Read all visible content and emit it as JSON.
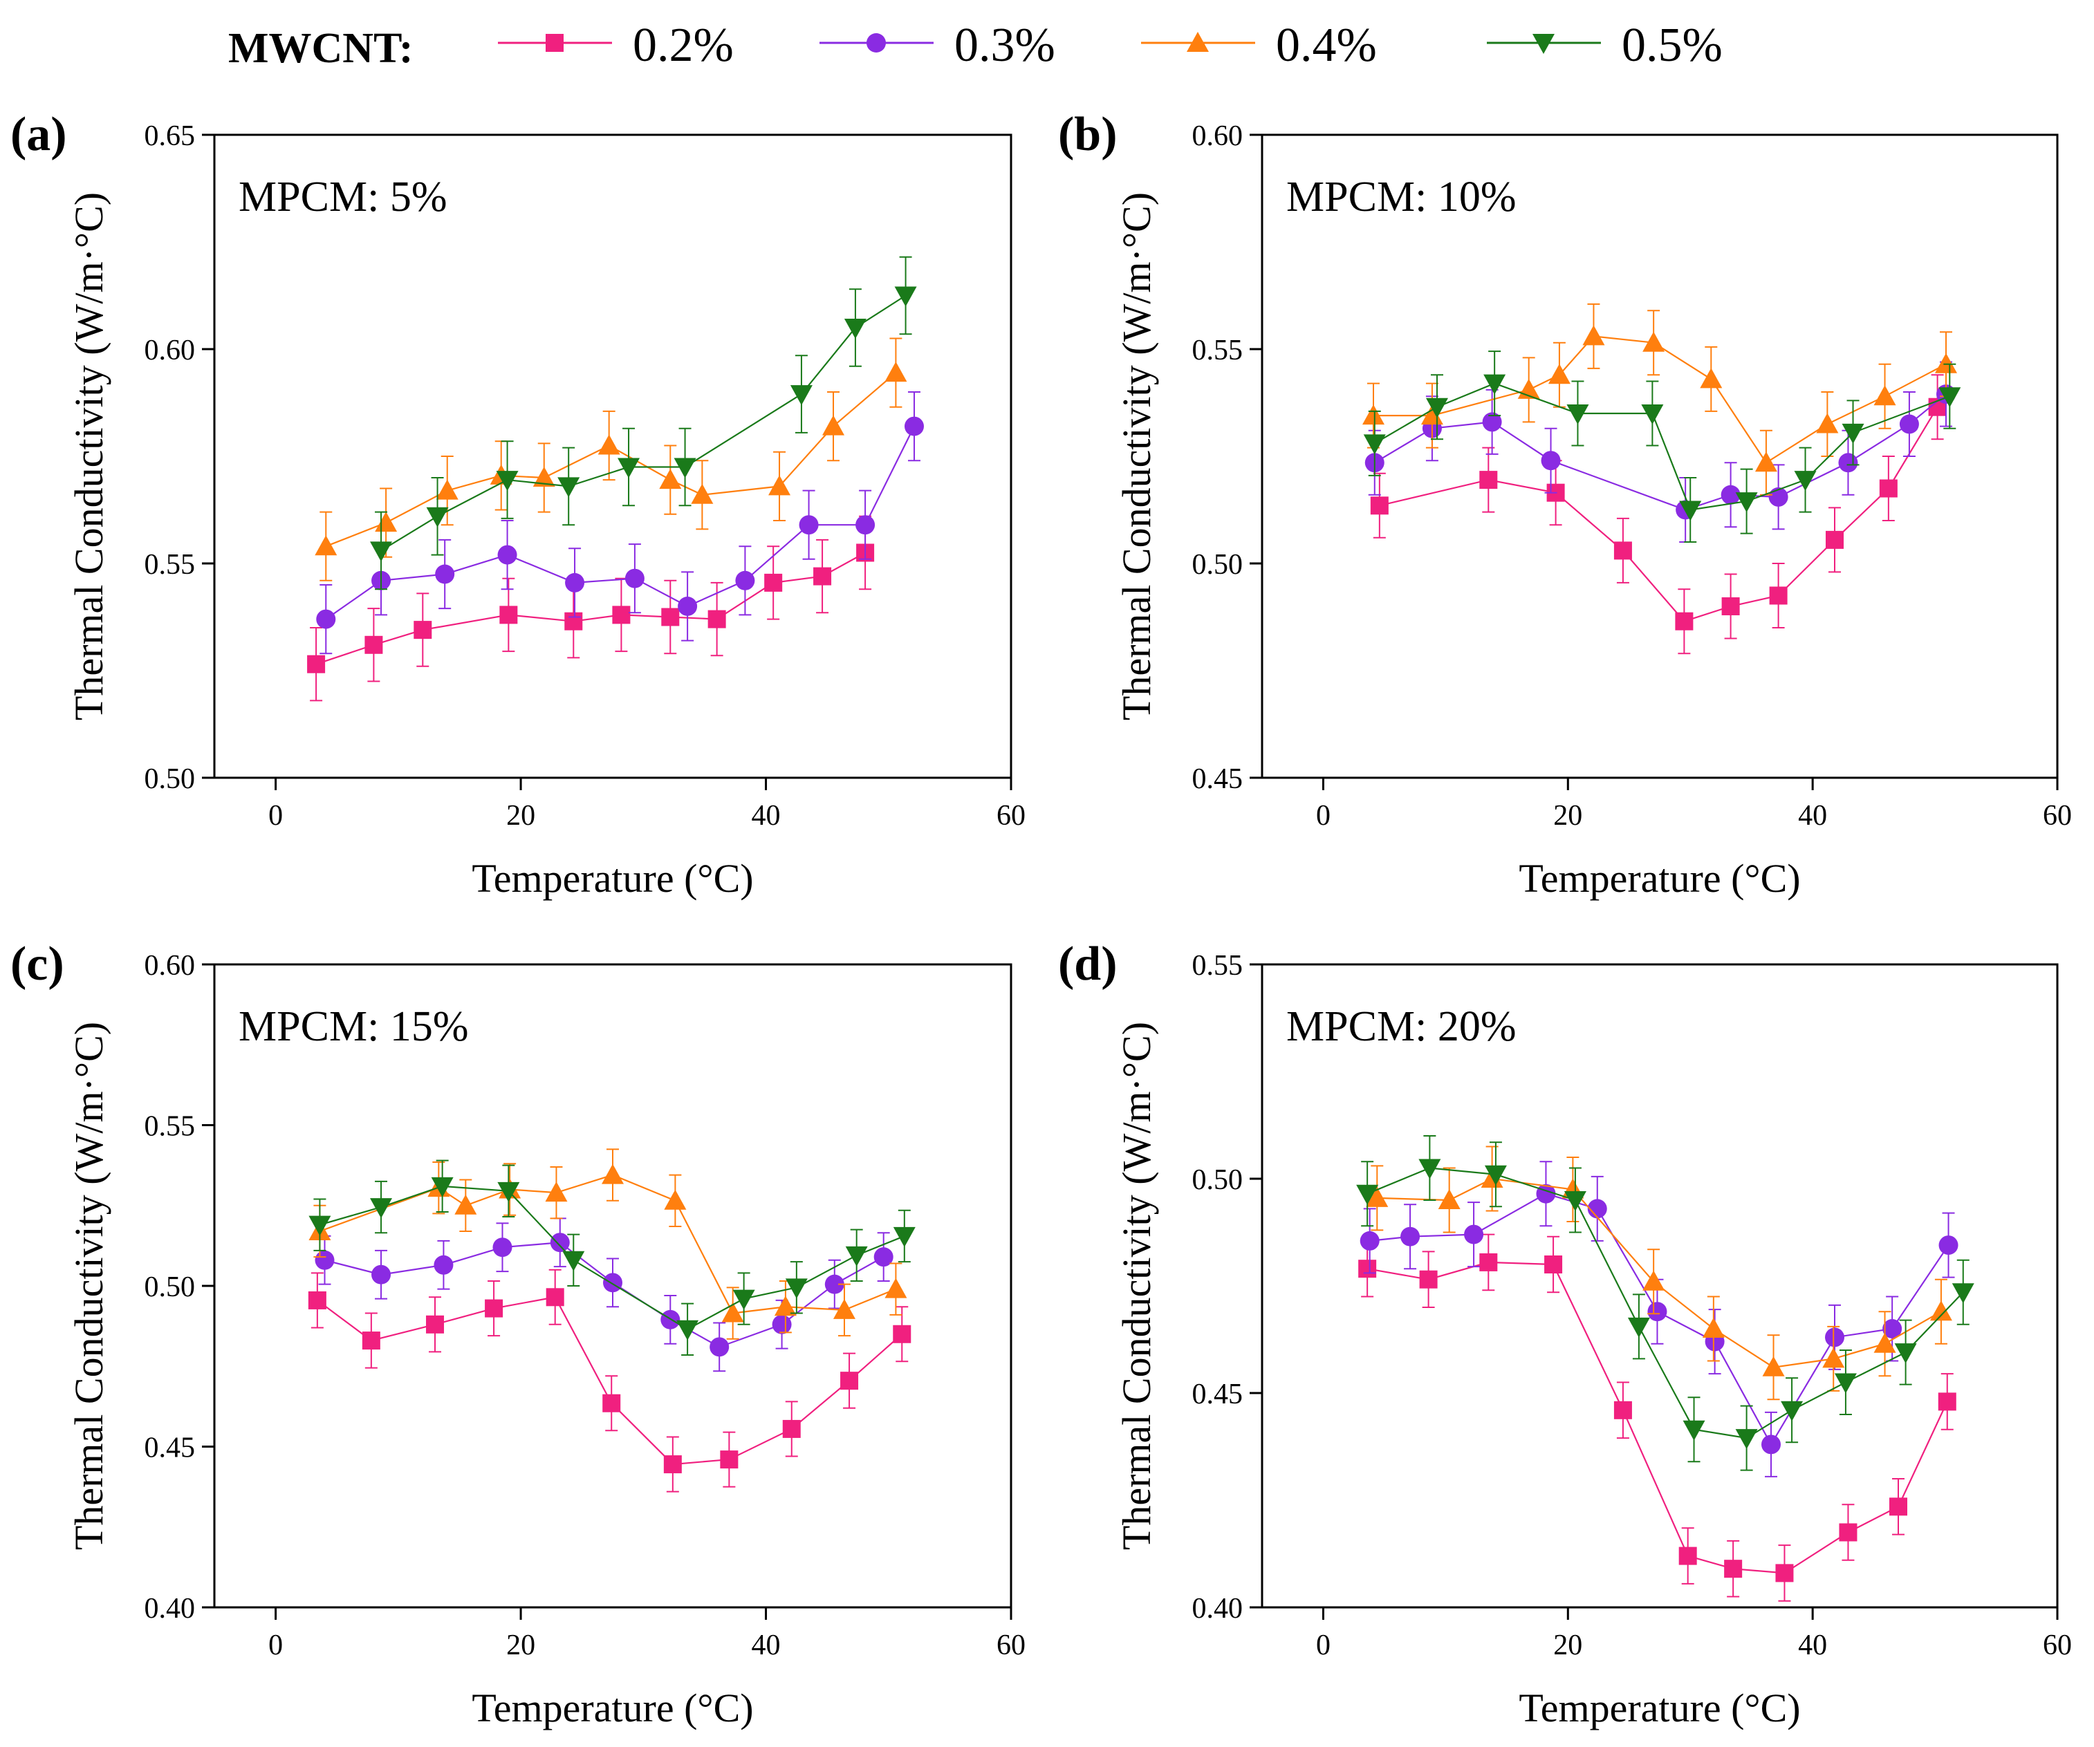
{
  "legend": {
    "title": "MWCNT:",
    "entries": [
      {
        "label": "0.2%",
        "color": "#f0207f",
        "marker": "square"
      },
      {
        "label": "0.3%",
        "color": "#8a2be2",
        "marker": "circle"
      },
      {
        "label": "0.4%",
        "color": "#ff7f0e",
        "marker": "triangle-up"
      },
      {
        "label": "0.5%",
        "color": "#1a7a1a",
        "marker": "triangle-down"
      }
    ]
  },
  "chart_data": [
    {
      "type": "line",
      "panel": "(a)",
      "annotation": "MPCM: 5%",
      "xlabel": "Temperature (°C)",
      "ylabel": "Thermal Conductivity (W/m·°C)",
      "xlim": [
        -5,
        60
      ],
      "ylim": [
        0.5,
        0.65
      ],
      "xticks": [
        0,
        20,
        40,
        60
      ],
      "xtick_labels": [
        "0",
        "20",
        "40",
        "60"
      ],
      "yticks": [
        0.5,
        0.55,
        0.6,
        0.65
      ],
      "ytick_labels": [
        "0.50",
        "0.55",
        "0.60",
        "0.65"
      ],
      "series": [
        {
          "name": "0.2%",
          "err": 0.0085,
          "x": [
            3.3,
            8,
            12,
            19,
            24.3,
            28.2,
            32.2,
            36,
            40.6,
            44.6,
            48.1
          ],
          "y": [
            0.5265,
            0.531,
            0.5345,
            0.538,
            0.5365,
            0.538,
            0.5375,
            0.537,
            0.5455,
            0.547,
            0.5525
          ]
        },
        {
          "name": "0.3%",
          "err": 0.008,
          "x": [
            4.1,
            8.6,
            13.8,
            18.9,
            24.4,
            29.3,
            33.6,
            38.3,
            43.5,
            48.1,
            52.1
          ],
          "y": [
            0.537,
            0.546,
            0.5475,
            0.552,
            0.5455,
            0.5465,
            0.54,
            0.546,
            0.559,
            0.559,
            0.582
          ]
        },
        {
          "name": "0.4%",
          "err": 0.008,
          "x": [
            4.1,
            9,
            14,
            18.4,
            21.9,
            27.2,
            32.2,
            34.8,
            41.1,
            45.5,
            50.6
          ],
          "y": [
            0.554,
            0.5595,
            0.567,
            0.5705,
            0.57,
            0.5775,
            0.5695,
            0.566,
            0.568,
            0.582,
            0.5945
          ]
        },
        {
          "name": "0.5%",
          "err": 0.009,
          "x": [
            8.6,
            13.2,
            18.9,
            23.9,
            28.8,
            33.4,
            42.9,
            47.3,
            51.4
          ],
          "y": [
            0.553,
            0.561,
            0.5695,
            0.568,
            0.5725,
            0.5725,
            0.5895,
            0.605,
            0.6125
          ]
        }
      ]
    },
    {
      "type": "line",
      "panel": "(b)",
      "annotation": "MPCM: 10%",
      "xlabel": "Temperature (°C)",
      "ylabel": "Thermal Conductivity (W/m·°C)",
      "xlim": [
        -5,
        60
      ],
      "ylim": [
        0.45,
        0.6
      ],
      "xticks": [
        0,
        20,
        40,
        60
      ],
      "xtick_labels": [
        "0",
        "20",
        "40",
        "60"
      ],
      "yticks": [
        0.45,
        0.5,
        0.55,
        0.6
      ],
      "ytick_labels": [
        "0.45",
        "0.50",
        "0.55",
        "0.60"
      ],
      "series": [
        {
          "name": "0.2%",
          "err": 0.0075,
          "x": [
            4.6,
            13.5,
            19,
            24.5,
            29.5,
            33.3,
            37.2,
            41.8,
            46.2,
            50.2
          ],
          "y": [
            0.5135,
            0.5195,
            0.5165,
            0.503,
            0.4865,
            0.49,
            0.4925,
            0.5055,
            0.5175,
            0.5365
          ]
        },
        {
          "name": "0.3%",
          "err": 0.0075,
          "x": [
            4.2,
            8.9,
            13.8,
            18.6,
            29.6,
            33.3,
            37.2,
            42.9,
            47.9,
            50.9
          ],
          "y": [
            0.5235,
            0.5315,
            0.533,
            0.524,
            0.5125,
            0.516,
            0.5155,
            0.5235,
            0.5325,
            0.5395
          ]
        },
        {
          "name": "0.4%",
          "err": 0.0075,
          "x": [
            4.1,
            8.9,
            16.8,
            19.3,
            22.1,
            27,
            31.7,
            36.2,
            41.2,
            45.9,
            50.9
          ],
          "y": [
            0.5345,
            0.5345,
            0.5405,
            0.544,
            0.553,
            0.5515,
            0.543,
            0.5235,
            0.5325,
            0.539,
            0.5465
          ]
        },
        {
          "name": "0.5%",
          "err": 0.0075,
          "x": [
            4.2,
            9.3,
            14,
            20.8,
            26.9,
            30,
            34.6,
            39.4,
            43.3,
            51.2
          ],
          "y": [
            0.528,
            0.5365,
            0.542,
            0.535,
            0.535,
            0.5125,
            0.5145,
            0.5195,
            0.5305,
            0.539
          ]
        }
      ]
    },
    {
      "type": "line",
      "panel": "(c)",
      "annotation": "MPCM: 15%",
      "xlabel": "Temperature (°C)",
      "ylabel": "Thermal Conductivity (W/m·°C)",
      "xlim": [
        -5,
        60
      ],
      "ylim": [
        0.4,
        0.6
      ],
      "xticks": [
        0,
        20,
        40,
        60
      ],
      "xtick_labels": [
        "0",
        "20",
        "40",
        "60"
      ],
      "yticks": [
        0.4,
        0.45,
        0.5,
        0.55,
        0.6
      ],
      "ytick_labels": [
        "0.40",
        "0.45",
        "0.50",
        "0.55",
        "0.60"
      ],
      "series": [
        {
          "name": "0.2%",
          "err": 0.0085,
          "x": [
            3.4,
            7.8,
            13,
            17.8,
            22.8,
            27.4,
            32.4,
            37,
            42.1,
            46.8,
            51.1
          ],
          "y": [
            0.4955,
            0.483,
            0.488,
            0.493,
            0.4965,
            0.4635,
            0.4445,
            0.446,
            0.4555,
            0.4705,
            0.485
          ]
        },
        {
          "name": "0.3%",
          "err": 0.0075,
          "x": [
            4,
            8.6,
            13.7,
            18.5,
            23.2,
            27.5,
            32.2,
            36.2,
            41.3,
            45.6,
            49.6
          ],
          "y": [
            0.508,
            0.5035,
            0.5065,
            0.512,
            0.5135,
            0.501,
            0.4895,
            0.481,
            0.488,
            0.5005,
            0.509
          ]
        },
        {
          "name": "0.4%",
          "err": 0.008,
          "x": [
            3.6,
            13.3,
            15.5,
            19.1,
            22.9,
            27.5,
            32.6,
            37.3,
            41.6,
            46.4,
            50.6
          ],
          "y": [
            0.517,
            0.5305,
            0.525,
            0.53,
            0.529,
            0.5345,
            0.5265,
            0.4915,
            0.4935,
            0.4925,
            0.499
          ]
        },
        {
          "name": "0.5%",
          "err": 0.008,
          "x": [
            3.6,
            8.6,
            13.6,
            19,
            24.3,
            33.6,
            38.2,
            42.5,
            47.4,
            51.3
          ],
          "y": [
            0.519,
            0.5245,
            0.531,
            0.5295,
            0.508,
            0.4865,
            0.496,
            0.4995,
            0.5095,
            0.5155
          ]
        }
      ]
    },
    {
      "type": "line",
      "panel": "(d)",
      "annotation": "MPCM: 20%",
      "xlabel": "Temperature (°C)",
      "ylabel": "Thermal Conductivity (W/m·°C)",
      "xlim": [
        -5,
        60
      ],
      "ylim": [
        0.4,
        0.55
      ],
      "xticks": [
        0,
        20,
        40,
        60
      ],
      "xtick_labels": [
        "0",
        "20",
        "40",
        "60"
      ],
      "yticks": [
        0.4,
        0.45,
        0.5,
        0.55
      ],
      "ytick_labels": [
        "0.40",
        "0.45",
        "0.50",
        "0.55"
      ],
      "series": [
        {
          "name": "0.2%",
          "err": 0.0065,
          "x": [
            3.6,
            8.6,
            13.5,
            18.8,
            24.5,
            29.8,
            33.5,
            37.7,
            42.9,
            47,
            51
          ],
          "y": [
            0.479,
            0.4765,
            0.4805,
            0.48,
            0.446,
            0.412,
            0.409,
            0.408,
            0.4175,
            0.4235,
            0.448
          ]
        },
        {
          "name": "0.3%",
          "err": 0.0075,
          "x": [
            3.8,
            7.1,
            12.3,
            18.2,
            22.4,
            27.3,
            32,
            36.6,
            41.8,
            46.5,
            51.1
          ],
          "y": [
            0.4855,
            0.4865,
            0.487,
            0.4965,
            0.493,
            0.469,
            0.462,
            0.438,
            0.463,
            0.465,
            0.4845
          ]
        },
        {
          "name": "0.4%",
          "err": 0.0075,
          "x": [
            4.4,
            10.3,
            13.8,
            20.4,
            27,
            31.9,
            36.8,
            41.7,
            45.9,
            50.5
          ],
          "y": [
            0.4955,
            0.495,
            0.5,
            0.4975,
            0.476,
            0.465,
            0.456,
            0.458,
            0.4615,
            0.469
          ]
        },
        {
          "name": "0.5%",
          "err": 0.0075,
          "x": [
            3.6,
            8.7,
            14.1,
            20.6,
            25.8,
            30.3,
            34.6,
            38.3,
            42.7,
            47.6,
            52.3
          ],
          "y": [
            0.4965,
            0.5025,
            0.501,
            0.495,
            0.4655,
            0.4415,
            0.4395,
            0.446,
            0.4525,
            0.4595,
            0.4735
          ]
        }
      ]
    }
  ]
}
